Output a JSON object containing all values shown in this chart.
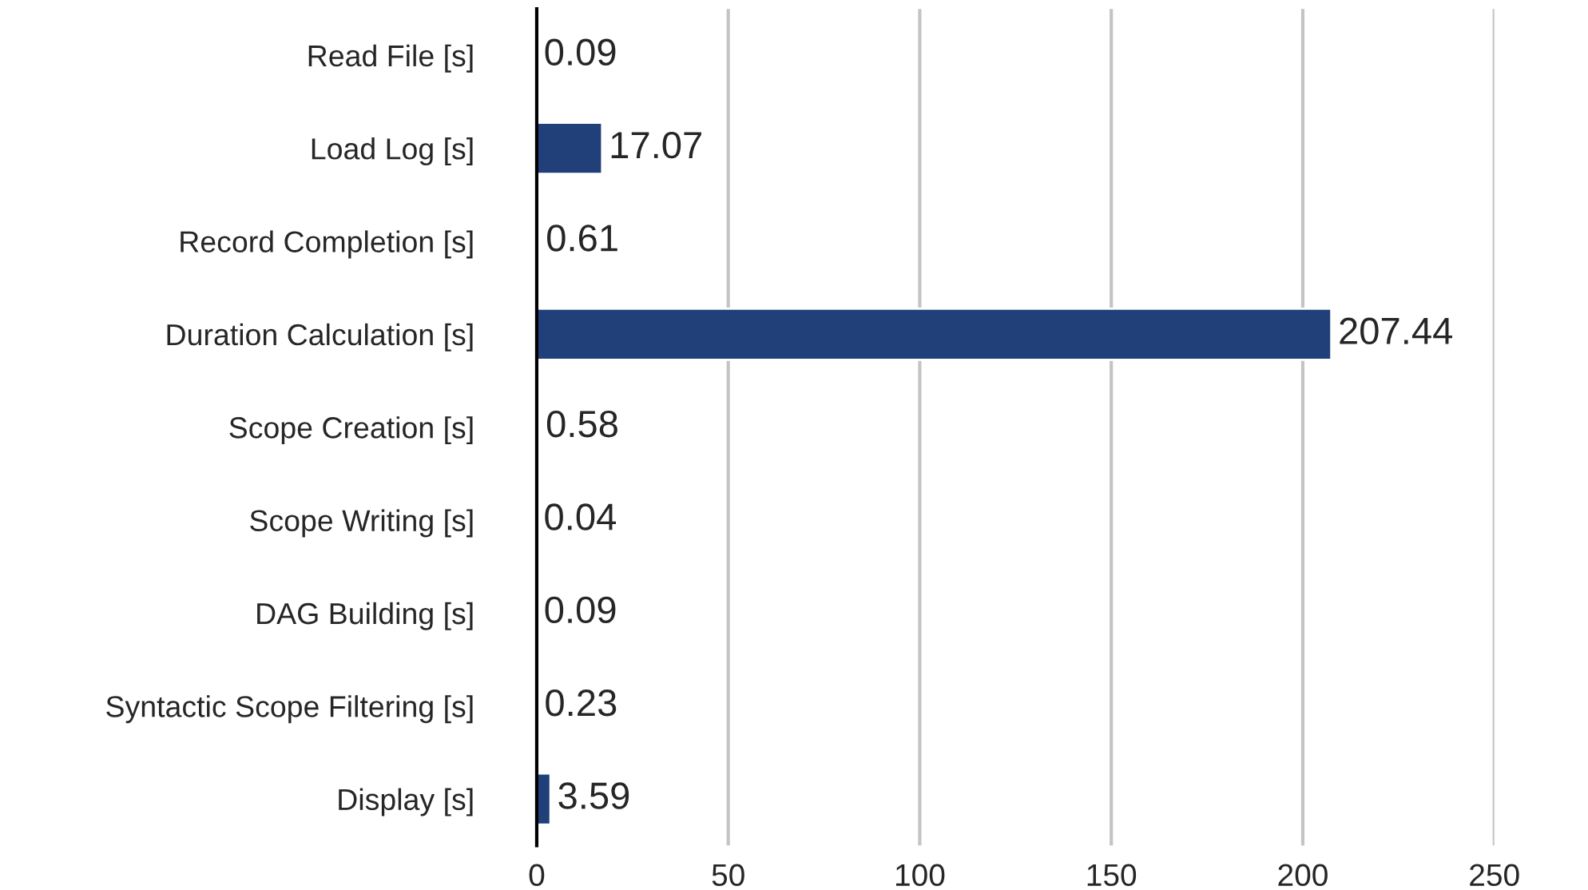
{
  "chart_data": {
    "type": "bar",
    "orientation": "horizontal",
    "categories": [
      "Read File [s]",
      "Load Log [s]",
      "Record Completion [s]",
      "Duration Calculation [s]",
      "Scope Creation [s]",
      "Scope Writing [s]",
      "DAG Building [s]",
      "Syntactic Scope Filtering [s]",
      "Display [s]"
    ],
    "values": [
      0.09,
      17.07,
      0.61,
      207.44,
      0.58,
      0.04,
      0.09,
      0.23,
      3.59
    ],
    "color": "#21407a",
    "xlim": [
      0,
      250
    ],
    "xticks": [
      0,
      50,
      100,
      150,
      200,
      250
    ],
    "grid": "x",
    "data_labels": true,
    "legend": false
  }
}
